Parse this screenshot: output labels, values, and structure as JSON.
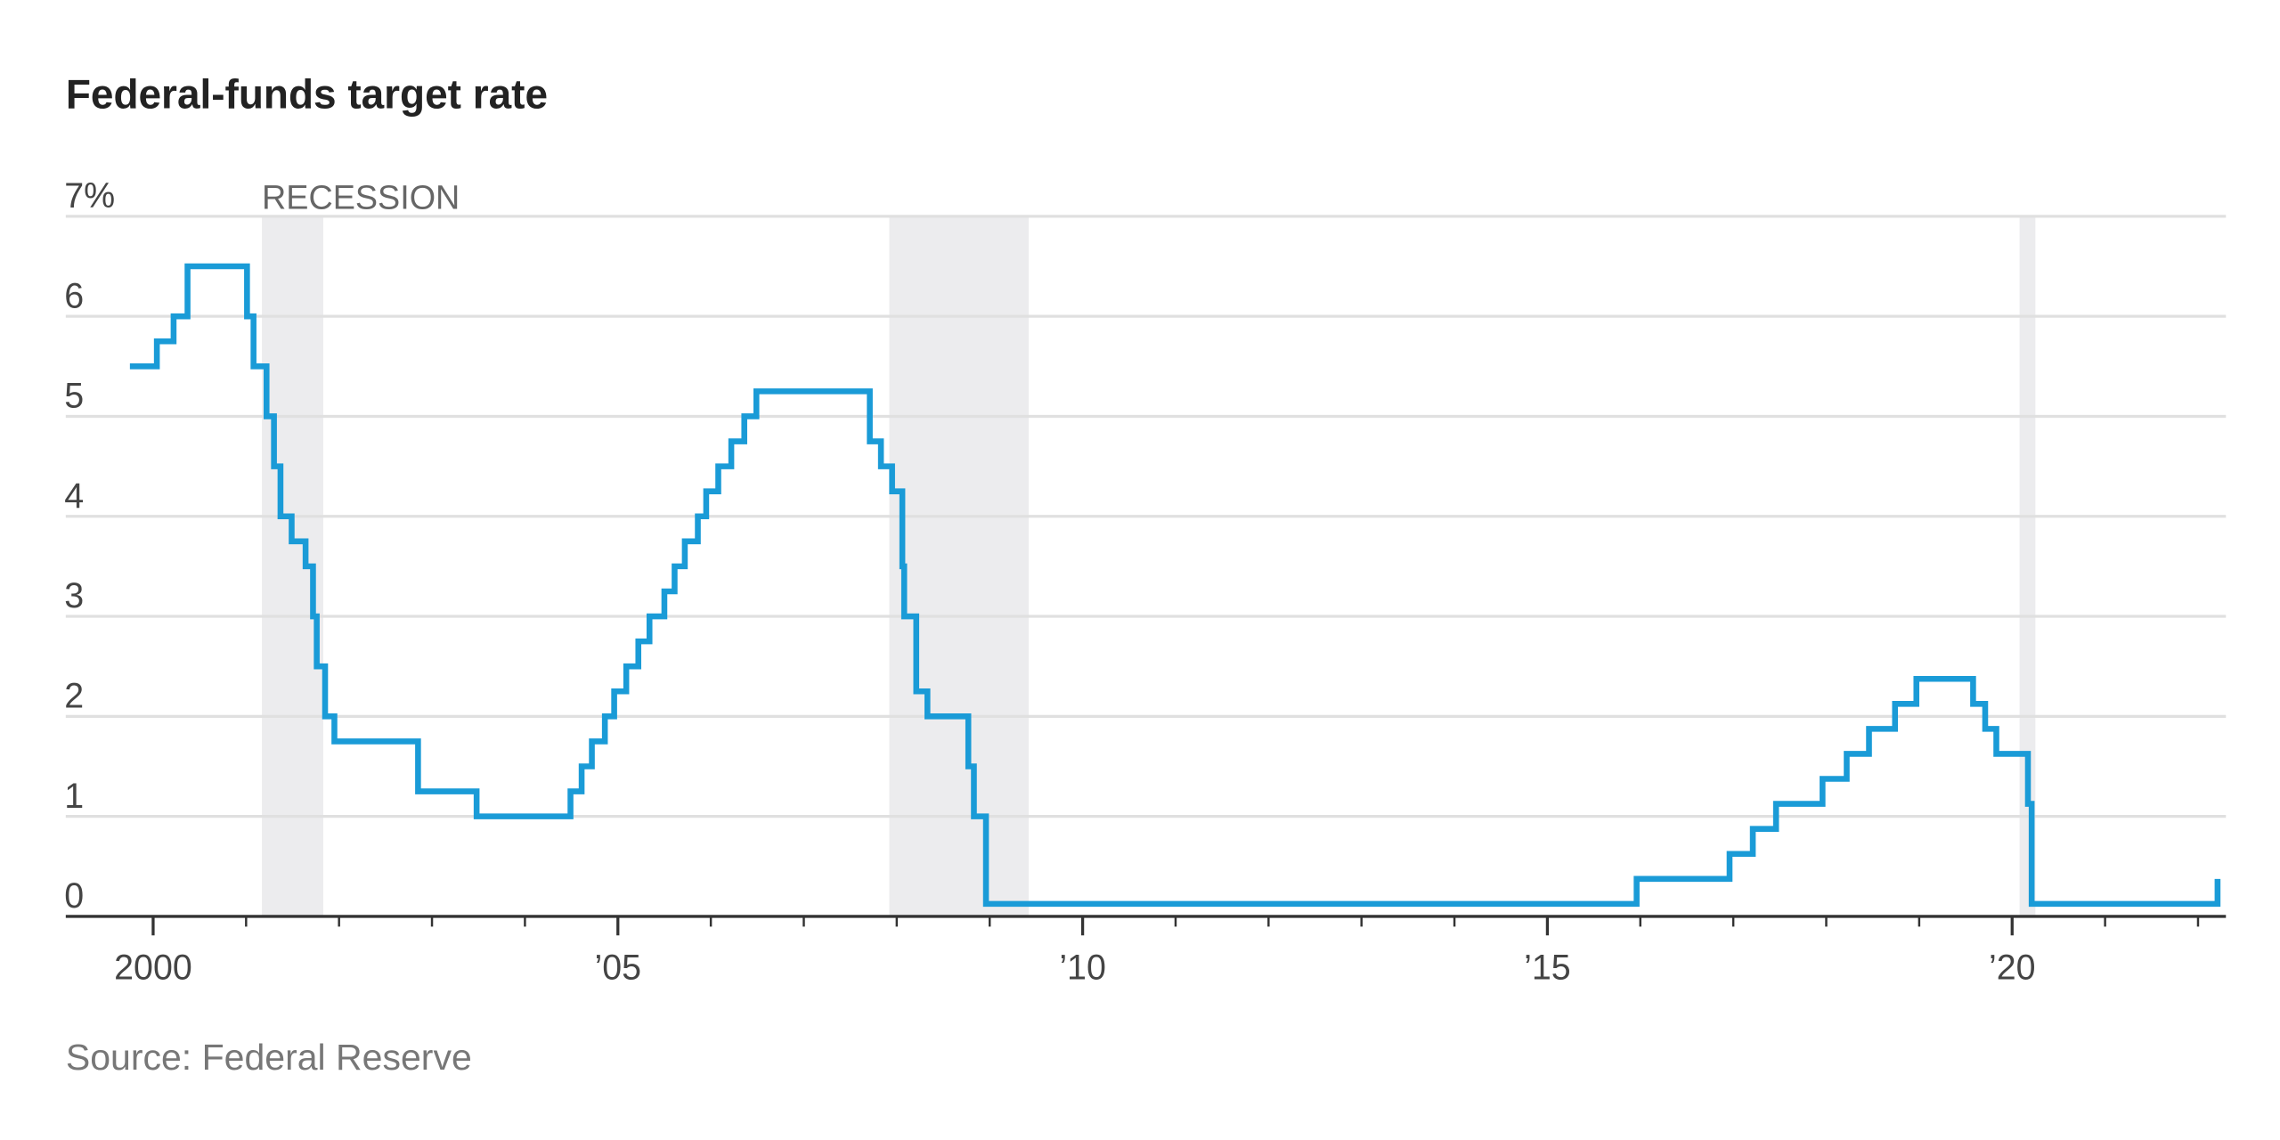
{
  "chart_data": {
    "type": "line",
    "title": "Federal-funds target rate",
    "source": "Source: Federal Reserve",
    "step": "post",
    "grid": true,
    "xlim": [
      1999.06,
      2022.3
    ],
    "ylim": [
      0,
      7
    ],
    "yticks": [
      0,
      1,
      2,
      3,
      4,
      5,
      6,
      {
        "value": 7,
        "label": "7%"
      }
    ],
    "xticks": [
      2000,
      {
        "value": 2005,
        "label": "’05"
      },
      {
        "value": 2010,
        "label": "’10"
      },
      {
        "value": 2015,
        "label": "’15"
      },
      {
        "value": 2020,
        "label": "’20"
      }
    ],
    "xminorticks": [
      2001,
      2002,
      2003,
      2004,
      2006,
      2007,
      2008,
      2009,
      2011,
      2012,
      2013,
      2014,
      2016,
      2017,
      2018,
      2019,
      2021,
      2022
    ],
    "recession_label": "RECESSION",
    "recession_color": "#ececee",
    "recessions": [
      [
        2001.17,
        2001.83
      ],
      [
        2007.92,
        2009.42
      ],
      [
        2020.08,
        2020.25
      ]
    ],
    "series": [
      {
        "name": "Federal-funds target rate",
        "color": "#1a9bd7",
        "x": [
          1999.75,
          2000.04,
          2000.22,
          2000.37,
          2001.01,
          2001.08,
          2001.22,
          2001.3,
          2001.37,
          2001.49,
          2001.64,
          2001.72,
          2001.76,
          2001.85,
          2001.95,
          2002.85,
          2003.48,
          2004.49,
          2004.61,
          2004.72,
          2004.86,
          2004.96,
          2005.09,
          2005.22,
          2005.34,
          2005.5,
          2005.61,
          2005.72,
          2005.86,
          2005.95,
          2006.08,
          2006.22,
          2006.36,
          2006.49,
          2007.71,
          2007.83,
          2007.95,
          2008.06,
          2008.08,
          2008.21,
          2008.33,
          2008.77,
          2008.83,
          2008.96,
          2015.96,
          2016.96,
          2017.21,
          2017.46,
          2017.96,
          2018.22,
          2018.46,
          2018.74,
          2018.97,
          2019.58,
          2019.71,
          2019.83,
          2020.17,
          2020.21,
          2022.21
        ],
        "values": [
          5.5,
          5.75,
          6.0,
          6.5,
          6.0,
          5.5,
          5.0,
          4.5,
          4.0,
          3.75,
          3.5,
          3.0,
          2.5,
          2.0,
          1.75,
          1.25,
          1.0,
          1.25,
          1.5,
          1.75,
          2.0,
          2.25,
          2.5,
          2.75,
          3.0,
          3.25,
          3.5,
          3.75,
          4.0,
          4.25,
          4.5,
          4.75,
          5.0,
          5.25,
          4.75,
          4.5,
          4.25,
          3.5,
          3.0,
          2.25,
          2.0,
          1.5,
          1.0,
          0.125,
          0.375,
          0.625,
          0.875,
          1.125,
          1.375,
          1.625,
          1.875,
          2.125,
          2.375,
          2.125,
          1.875,
          1.625,
          1.125,
          0.125,
          0.375
        ]
      }
    ]
  }
}
